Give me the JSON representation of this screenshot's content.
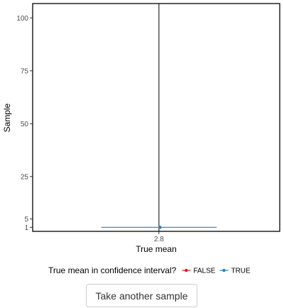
{
  "chart_data": {
    "type": "scatter",
    "xlabel": "True mean",
    "ylabel": "Sample",
    "true_mean": 2.8,
    "x_ticks": [
      2.8
    ],
    "y_ticks": [
      1,
      5,
      25,
      50,
      75,
      100
    ],
    "ylim": [
      -0.9,
      106.8
    ],
    "xlim": [
      0.5,
      5.0
    ],
    "series": [
      {
        "name": "TRUE",
        "color": "#2c7fb8",
        "points": [
          {
            "sample": 1,
            "mean": 2.82,
            "lower": 1.75,
            "upper": 3.85
          }
        ]
      }
    ],
    "legend": {
      "title": "True mean in confidence interval?",
      "position": "bottom",
      "entries": [
        {
          "label": "FALSE",
          "color": "#d7191c"
        },
        {
          "label": "TRUE",
          "color": "#2c7fb8"
        }
      ]
    },
    "grid": false
  },
  "controls": {
    "sample_button_label": "Take another sample"
  }
}
